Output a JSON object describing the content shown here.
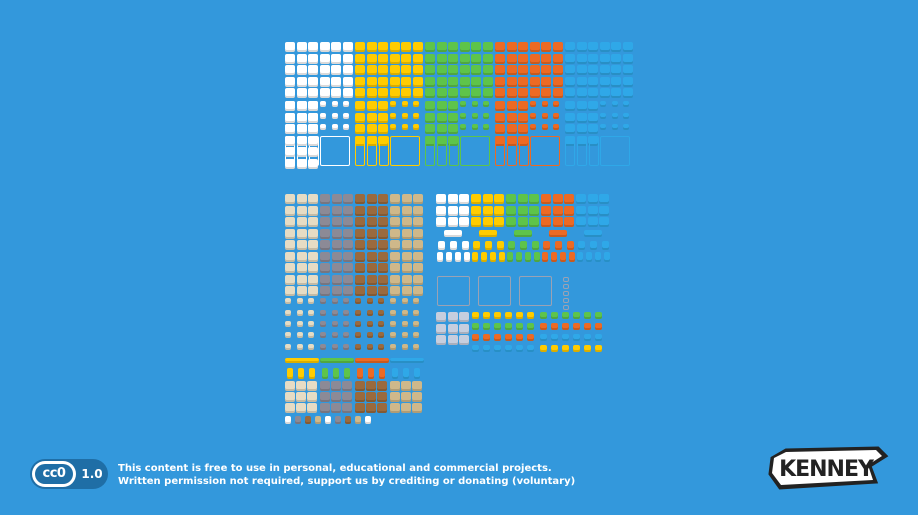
{
  "license": {
    "badge": "cc0",
    "version": "1.0",
    "line1": "This content is free to use in personal, educational and commercial projects.",
    "line2": "Written permission not required, support us by crediting or donating (voluntary)"
  },
  "brand": {
    "logo_text": "KENNEY"
  },
  "colors": {
    "background": "#3398dc",
    "white": "#ffffff",
    "yellow": "#ffcc00",
    "green": "#5ec44a",
    "orange": "#ec6a24",
    "blue": "#2fa8e8",
    "beige": "#e6dcc4",
    "grey": "#8c8a96",
    "brown": "#9a6a3e",
    "sand": "#cfb88a"
  },
  "sprite_sheet": {
    "groups": [
      {
        "name": "white",
        "color": "#ffffff"
      },
      {
        "name": "yellow",
        "color": "#ffcc00"
      },
      {
        "name": "green",
        "color": "#5ec44a"
      },
      {
        "name": "orange",
        "color": "#ec6a24"
      },
      {
        "name": "blue",
        "color": "#2fa8e8"
      },
      {
        "name": "beige",
        "color": "#e6dcc4"
      },
      {
        "name": "grey",
        "color": "#8c8a96"
      },
      {
        "name": "brown",
        "color": "#9a6a3e"
      },
      {
        "name": "sand",
        "color": "#cfb88a"
      }
    ]
  }
}
